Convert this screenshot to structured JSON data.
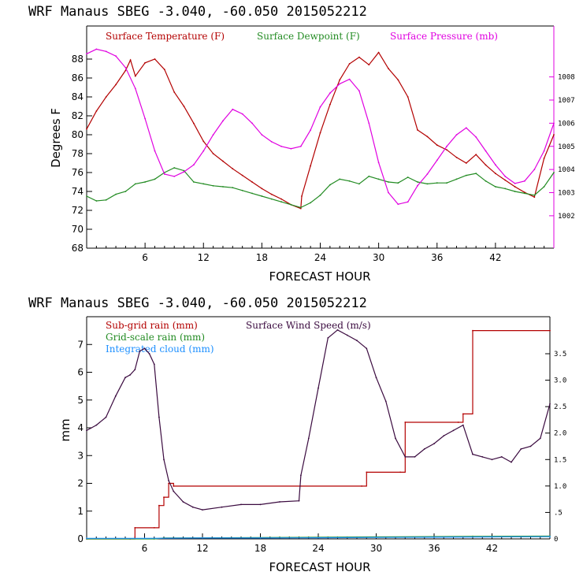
{
  "colors": {
    "temperature": "#b30000",
    "dewpoint": "#228b22",
    "pressure": "#e000e0",
    "subgrid": "#b30000",
    "gridscale": "#228b22",
    "cloud": "#1e90ff",
    "wind": "#3a0a3f",
    "axis": "#000000"
  },
  "chart_data": [
    {
      "type": "line",
      "title": "WRF   Manaus SBEG   -3.040, -60.050  2015052212",
      "xlabel": "FORECAST HOUR",
      "ylabel": "Degrees F",
      "xlim": [
        0,
        48
      ],
      "ylim": [
        68,
        91.5
      ],
      "xticks": [
        "6",
        "12",
        "18",
        "24",
        "30",
        "36",
        "42"
      ],
      "yticks": [
        "68",
        "70",
        "72",
        "74",
        "76",
        "78",
        "80",
        "82",
        "84",
        "86",
        "88"
      ],
      "y2lim": [
        1000.6,
        1010.2
      ],
      "y2ticks": [
        "1002",
        "1003",
        "1004",
        "1005",
        "1006",
        "1007",
        "1008"
      ],
      "legend": [
        {
          "label": "Surface Temperature (F)",
          "color": "#b30000"
        },
        {
          "label": "Surface Dewpoint (F)",
          "color": "#228b22"
        },
        {
          "label": "Surface Pressure (mb)",
          "color": "#e000e0"
        }
      ],
      "series": [
        {
          "name": "Surface Temperature (F)",
          "axis": "left",
          "x": [
            0,
            1,
            2,
            3,
            4,
            4.5,
            5,
            6,
            7,
            8,
            9,
            10,
            11,
            12,
            13,
            14,
            15,
            16,
            17,
            18,
            19,
            20,
            21,
            22,
            22.1,
            23,
            24,
            25,
            26,
            27,
            28,
            29,
            30,
            31,
            32,
            33,
            34,
            35,
            36,
            37,
            38,
            39,
            40,
            41,
            42,
            43,
            44,
            45,
            46,
            47,
            48
          ],
          "y": [
            80.6,
            82.5,
            84.0,
            85.3,
            86.8,
            87.9,
            86.2,
            87.6,
            88.0,
            86.9,
            84.5,
            83.0,
            81.2,
            79.3,
            78.0,
            77.2,
            76.4,
            75.7,
            75.0,
            74.3,
            73.7,
            73.2,
            72.6,
            72.2,
            73.5,
            76.7,
            80.2,
            83.2,
            85.8,
            87.5,
            88.2,
            87.4,
            88.7,
            87.0,
            85.8,
            84.0,
            80.5,
            79.8,
            78.9,
            78.4,
            77.6,
            77.0,
            77.9,
            76.8,
            75.9,
            75.2,
            74.5,
            73.9,
            73.4,
            77.5,
            80.0
          ]
        },
        {
          "name": "Surface Dewpoint (F)",
          "axis": "left",
          "x": [
            0,
            1,
            2,
            3,
            4,
            5,
            6,
            7,
            8,
            9,
            10,
            11,
            12,
            13,
            14,
            15,
            16,
            17,
            18,
            19,
            20,
            21,
            22,
            23,
            24,
            25,
            26,
            27,
            28,
            29,
            30,
            31,
            32,
            33,
            34,
            35,
            36,
            37,
            38,
            39,
            40,
            41,
            42,
            43,
            44,
            45,
            46,
            47,
            48
          ],
          "y": [
            73.5,
            73.0,
            73.1,
            73.7,
            74.0,
            74.8,
            75.0,
            75.3,
            76.0,
            76.5,
            76.2,
            75.0,
            74.8,
            74.6,
            74.5,
            74.4,
            74.1,
            73.8,
            73.5,
            73.2,
            72.9,
            72.6,
            72.3,
            72.8,
            73.6,
            74.7,
            75.3,
            75.1,
            74.8,
            75.6,
            75.3,
            75.0,
            74.9,
            75.5,
            75.0,
            74.8,
            74.9,
            74.9,
            75.3,
            75.7,
            75.9,
            75.1,
            74.5,
            74.3,
            74.0,
            73.8,
            73.6,
            74.5,
            76.0
          ]
        },
        {
          "name": "Surface Pressure (mb)",
          "axis": "right",
          "x": [
            0,
            1,
            2,
            3,
            4,
            5,
            6,
            7,
            8,
            9,
            10,
            11,
            12,
            13,
            14,
            15,
            16,
            17,
            18,
            19,
            20,
            21,
            22,
            23,
            24,
            25,
            26,
            27,
            28,
            29,
            30,
            31,
            32,
            33,
            34,
            35,
            36,
            37,
            38,
            39,
            40,
            41,
            42,
            43,
            44,
            45,
            46,
            47,
            48
          ],
          "y": [
            1009.0,
            1009.2,
            1009.1,
            1008.9,
            1008.4,
            1007.5,
            1006.2,
            1004.8,
            1003.8,
            1003.7,
            1003.9,
            1004.2,
            1004.8,
            1005.5,
            1006.1,
            1006.6,
            1006.4,
            1006.0,
            1005.5,
            1005.2,
            1005.0,
            1004.9,
            1005.0,
            1005.7,
            1006.7,
            1007.3,
            1007.7,
            1007.9,
            1007.4,
            1006.0,
            1004.3,
            1003.0,
            1002.5,
            1002.6,
            1003.3,
            1003.8,
            1004.4,
            1005.0,
            1005.5,
            1005.8,
            1005.4,
            1004.8,
            1004.2,
            1003.7,
            1003.4,
            1003.5,
            1004.0,
            1004.8,
            1006.0
          ]
        }
      ]
    },
    {
      "type": "line",
      "title": "WRF   Manaus SBEG   -3.040, -60.050  2015052212",
      "xlabel": "FORECAST HOUR",
      "ylabel": "mm",
      "xlim": [
        0,
        48
      ],
      "ylim": [
        0,
        8
      ],
      "xticks": [
        "6",
        "12",
        "18",
        "24",
        "30",
        "36",
        "42"
      ],
      "yticks": [
        "0",
        "1",
        "2",
        "3",
        "4",
        "5",
        "6",
        "7"
      ],
      "y2lim": [
        0,
        4.2
      ],
      "y2ticks": [
        "0",
        ".5",
        "1.0",
        "1.5",
        "2.0",
        "2.5",
        "3.0",
        "3.5"
      ],
      "legend": [
        {
          "label": "Sub-grid rain (mm)",
          "color": "#b30000"
        },
        {
          "label": "Grid-scale rain (mm)",
          "color": "#228b22"
        },
        {
          "label": "Integrated cloud (mm)",
          "color": "#1e90ff"
        },
        {
          "label": "Surface Wind Speed (m/s)",
          "color": "#3a0a3f"
        }
      ],
      "series": [
        {
          "name": "Sub-grid rain (mm)",
          "axis": "left",
          "x": [
            0,
            4.5,
            5,
            7,
            7.5,
            8,
            8.5,
            9,
            28.5,
            29,
            32.5,
            33,
            38.5,
            39,
            40,
            48
          ],
          "y": [
            0,
            0,
            0.4,
            0.4,
            1.2,
            1.5,
            2.0,
            1.9,
            1.9,
            2.4,
            2.4,
            4.2,
            4.2,
            4.5,
            7.5,
            7.5
          ]
        },
        {
          "name": "Grid-scale rain (mm)",
          "axis": "left",
          "x": [
            0,
            7,
            8,
            20,
            30,
            40,
            48
          ],
          "y": [
            0,
            0,
            0.03,
            0.05,
            0.07,
            0.09,
            0.1
          ]
        },
        {
          "name": "Integrated cloud (mm)",
          "axis": "left",
          "x": [
            0,
            6,
            12,
            18,
            24,
            30,
            36,
            42,
            48
          ],
          "y": [
            0.02,
            0.02,
            0.03,
            0.03,
            0.04,
            0.05,
            0.06,
            0.07,
            0.08
          ]
        },
        {
          "name": "Surface Wind Speed (m/s)",
          "axis": "right",
          "x": [
            0,
            1,
            2,
            3,
            4,
            4.5,
            5,
            5.5,
            6,
            6.5,
            7,
            7.5,
            8,
            8.5,
            9,
            10,
            11,
            12,
            14,
            16,
            18,
            20,
            22,
            22.2,
            23,
            24,
            25,
            26,
            27,
            28,
            29,
            30,
            31,
            32,
            33,
            34,
            35,
            36,
            37,
            38,
            39,
            40,
            41,
            42,
            43,
            44,
            45,
            46,
            47,
            48
          ],
          "y": [
            2.05,
            2.15,
            2.3,
            2.7,
            3.05,
            3.1,
            3.2,
            3.55,
            3.6,
            3.5,
            3.3,
            2.3,
            1.5,
            1.1,
            0.9,
            0.7,
            0.6,
            0.55,
            0.6,
            0.65,
            0.65,
            0.7,
            0.72,
            1.2,
            1.9,
            2.85,
            3.8,
            3.95,
            3.85,
            3.75,
            3.6,
            3.05,
            2.6,
            1.9,
            1.55,
            1.55,
            1.7,
            1.8,
            1.95,
            2.05,
            2.15,
            1.6,
            1.55,
            1.5,
            1.55,
            1.45,
            1.7,
            1.75,
            1.9,
            2.55
          ]
        }
      ]
    }
  ]
}
